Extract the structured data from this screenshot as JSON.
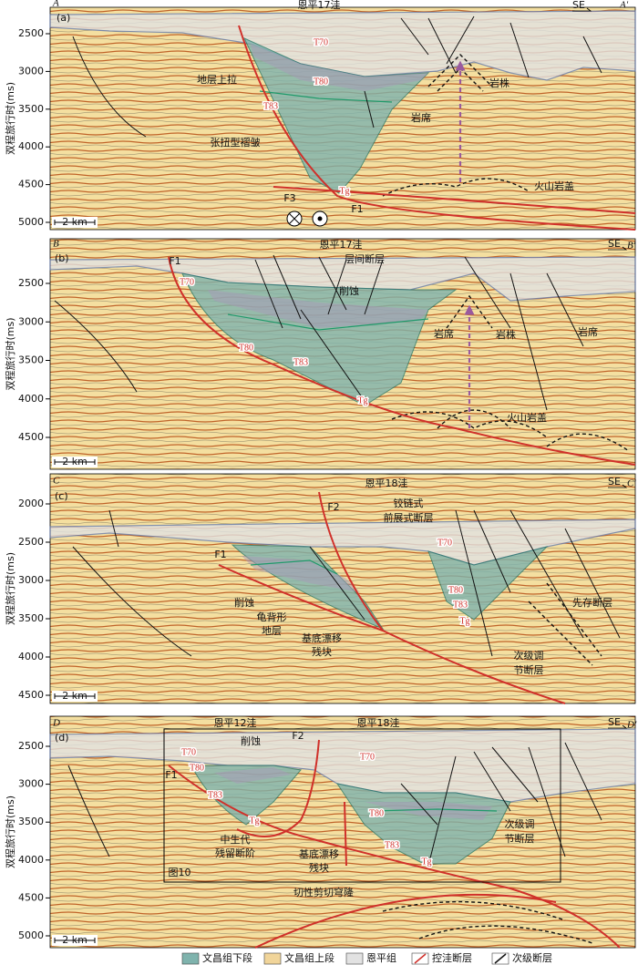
{
  "panels": [
    {
      "letter": "A",
      "tag": "(a)",
      "end": "A'",
      "direction": "SE",
      "titles": [
        "恩平17洼"
      ],
      "y_label": "双程旅行时(ms)",
      "yticks": [
        2500,
        3000,
        3500,
        4000,
        4500,
        5000
      ],
      "scale_bar": "2 km",
      "labels": [
        "地层上拉",
        "T70",
        "T80",
        "T83",
        "Tg",
        "岩株",
        "岩席",
        "张扭型褶皱",
        "火山岩盖",
        "F3",
        "F1"
      ]
    },
    {
      "letter": "B",
      "tag": "(b)",
      "end": "B'",
      "direction": "SE",
      "titles": [
        "恩平17洼"
      ],
      "y_label": "双程旅行时(ms)",
      "yticks": [
        2500,
        3000,
        3500,
        4000,
        4500
      ],
      "scale_bar": "2 km",
      "labels": [
        "F1",
        "T70",
        "层间断层",
        "削蚀",
        "T80",
        "T83",
        "Tg",
        "岩席",
        "岩株",
        "岩席",
        "火山岩盖"
      ]
    },
    {
      "letter": "C",
      "tag": "(c)",
      "end": "C'",
      "direction": "SE",
      "titles": [
        "恩平18洼"
      ],
      "y_label": "双程旅行时(ms)",
      "yticks": [
        2000,
        2500,
        3000,
        3500,
        4000,
        4500
      ],
      "scale_bar": "2 km",
      "labels": [
        "F2",
        "铰链式",
        "前展式断层",
        "T70",
        "F1",
        "削蚀",
        "龟背形",
        "地层",
        "基底漂移",
        "残块",
        "T80",
        "T83",
        "Tg",
        "先存断层",
        "次级调",
        "节断层"
      ]
    },
    {
      "letter": "D",
      "tag": "(d)",
      "end": "D'",
      "direction": "SE",
      "titles": [
        "恩平12洼",
        "恩平18洼"
      ],
      "y_label": "双程旅行时(ms)",
      "yticks": [
        2500,
        3000,
        3500,
        4000,
        4500,
        5000
      ],
      "scale_bar": "2 km",
      "labels": [
        "削蚀",
        "F2",
        "T70",
        "T80",
        "F1",
        "T83",
        "Tg",
        "T70",
        "T80",
        "T83",
        "Tg",
        "中生代",
        "残留断阶",
        "基底漂移",
        "残块",
        "次级调",
        "节断层",
        "图10",
        "切性剪切穹隆"
      ]
    }
  ],
  "legend": [
    "文昌组下段",
    "文昌组上段",
    "恩平组",
    "控洼断层",
    "次级断层"
  ]
}
